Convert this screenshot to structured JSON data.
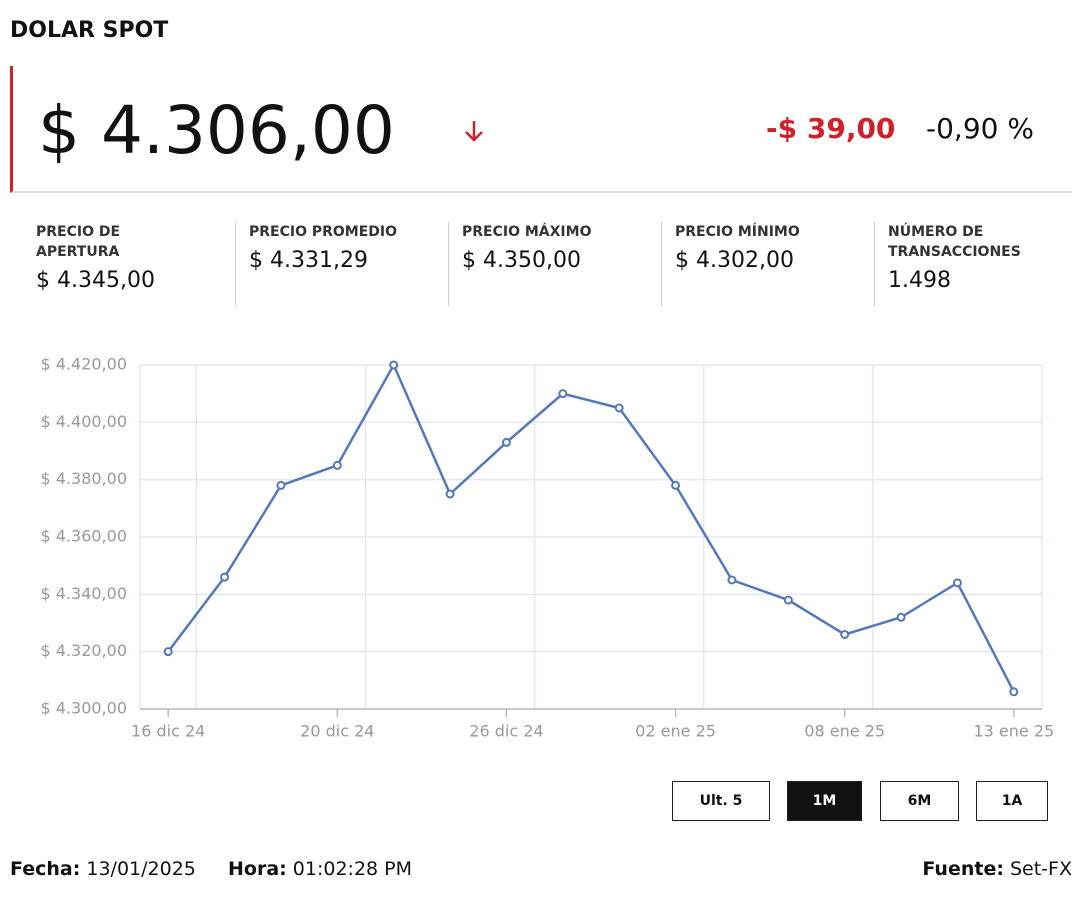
{
  "header": {
    "title": "DOLAR SPOT",
    "price": "$ 4.306,00",
    "change": "-$ 39,00",
    "change_pct": "-0,90 %"
  },
  "stats": [
    {
      "label": "PRECIO DE APERTURA",
      "value": "$ 4.345,00"
    },
    {
      "label": "PRECIO PROMEDIO",
      "value": "$ 4.331,29"
    },
    {
      "label": "PRECIO MÁXIMO",
      "value": "$ 4.350,00"
    },
    {
      "label": "PRECIO MÍNIMO",
      "value": "$ 4.302,00"
    },
    {
      "label": "NÚMERO DE TRANSACCIONES",
      "value": "1.498"
    }
  ],
  "chart_data": {
    "type": "line",
    "categories": [
      "16 dic 24",
      null,
      null,
      "20 dic 24",
      null,
      null,
      "26 dic 24",
      null,
      null,
      "02 ene 25",
      null,
      null,
      "08 ene 25",
      null,
      null,
      "13 ene 25"
    ],
    "series": [
      {
        "name": "Dolar spot",
        "color": "#5478b8",
        "values": [
          4320,
          4346,
          4378,
          4385,
          4420,
          4375,
          4393,
          4410,
          4405,
          4378,
          4345,
          4338,
          4326,
          4332,
          4344,
          4306
        ]
      }
    ],
    "ylim": [
      4300,
      4420
    ],
    "yticks": [
      {
        "value": 4300,
        "label": "$ 4.300,00"
      },
      {
        "value": 4320,
        "label": "$ 4.320,00"
      },
      {
        "value": 4340,
        "label": "$ 4.340,00"
      },
      {
        "value": 4360,
        "label": "$ 4.360,00"
      },
      {
        "value": 4380,
        "label": "$ 4.380,00"
      },
      {
        "value": 4400,
        "label": "$ 4.400,00"
      },
      {
        "value": 4420,
        "label": "$ 4.420,00"
      }
    ],
    "grid": true
  },
  "buttons": [
    "Ult. 5",
    "1M",
    "6M",
    "1A"
  ],
  "active_button": 1,
  "footer": {
    "date_label": "Fecha:",
    "date": "13/01/2025",
    "time_label": "Hora:",
    "time": "01:02:28 PM",
    "source_label": "Fuente:",
    "source": "Set-FX"
  }
}
